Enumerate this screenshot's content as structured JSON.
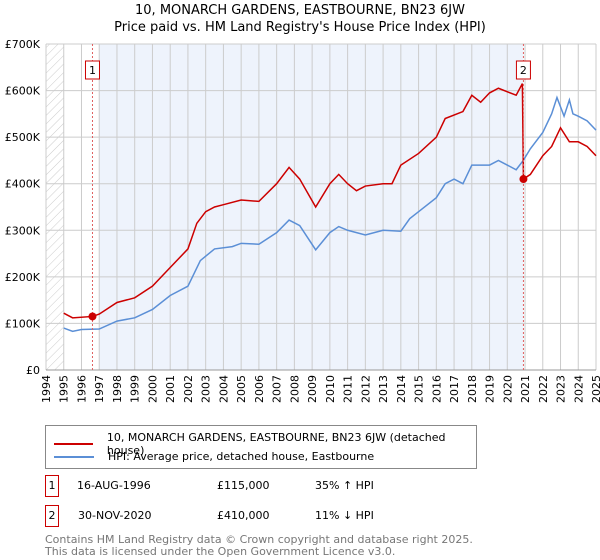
{
  "chart_data": {
    "type": "line",
    "title": "10, MONARCH GARDENS, EASTBOURNE, BN23 6JW",
    "subtitle": "Price paid vs. HM Land Registry's House Price Index (HPI)",
    "xlim": [
      1994,
      2025
    ],
    "ylim": [
      0,
      700000
    ],
    "x_ticks": [
      "1994",
      "1995",
      "1996",
      "1997",
      "1998",
      "1999",
      "2000",
      "2001",
      "2002",
      "2003",
      "2004",
      "2005",
      "2006",
      "2007",
      "2008",
      "2009",
      "2010",
      "2011",
      "2012",
      "2013",
      "2014",
      "2015",
      "2016",
      "2017",
      "2018",
      "2019",
      "2020",
      "2021",
      "2022",
      "2023",
      "2024",
      "2025"
    ],
    "y_ticks": [
      {
        "v": 0,
        "label": "£0"
      },
      {
        "v": 100000,
        "label": "£100K"
      },
      {
        "v": 200000,
        "label": "£200K"
      },
      {
        "v": 300000,
        "label": "£300K"
      },
      {
        "v": 400000,
        "label": "£400K"
      },
      {
        "v": 500000,
        "label": "£500K"
      },
      {
        "v": 600000,
        "label": "£600K"
      },
      {
        "v": 700000,
        "label": "£700K"
      }
    ],
    "grid": true,
    "series": [
      {
        "name": "10, MONARCH GARDENS, EASTBOURNE, BN23 6JW (detached house)",
        "color": "#cc0000",
        "x": [
          1995,
          1995.5,
          1996.62,
          1997,
          1998,
          1999,
          2000,
          2001,
          2002,
          2002.5,
          2003,
          2003.5,
          2004,
          2005,
          2006,
          2007,
          2007.7,
          2008.3,
          2009.2,
          2010,
          2010.5,
          2011,
          2011.5,
          2012,
          2013,
          2013.5,
          2014,
          2015,
          2016,
          2016.5,
          2017.5,
          2018,
          2018.5,
          2019,
          2019.5,
          2020.5,
          2020.85,
          2020.91,
          2021.3,
          2022,
          2022.5,
          2023,
          2023.5,
          2024,
          2024.5,
          2025
        ],
        "y": [
          122000,
          112000,
          115000,
          120000,
          145000,
          155000,
          180000,
          220000,
          260000,
          315000,
          340000,
          350000,
          355000,
          365000,
          362000,
          400000,
          435000,
          410000,
          350000,
          400000,
          420000,
          400000,
          385000,
          395000,
          400000,
          400000,
          440000,
          465000,
          500000,
          540000,
          555000,
          590000,
          575000,
          595000,
          605000,
          590000,
          615000,
          410000,
          420000,
          460000,
          480000,
          520000,
          490000,
          490000,
          480000,
          460000
        ]
      },
      {
        "name": "HPI: Average price, detached house, Eastbourne",
        "color": "#5b8fd6",
        "x": [
          1995,
          1995.5,
          1996,
          1997,
          1998,
          1999,
          2000,
          2001,
          2002,
          2002.7,
          2003.5,
          2004.5,
          2005,
          2006,
          2007,
          2007.7,
          2008.3,
          2009.2,
          2010,
          2010.5,
          2011,
          2012,
          2013,
          2014,
          2014.5,
          2015,
          2016,
          2016.5,
          2017,
          2017.5,
          2018,
          2019,
          2019.5,
          2020.5,
          2020.9,
          2021.3,
          2022,
          2022.5,
          2022.8,
          2023.2,
          2023.5,
          2023.7,
          2024,
          2024.5,
          2025
        ],
        "y": [
          90000,
          83000,
          87000,
          88000,
          105000,
          112000,
          130000,
          160000,
          180000,
          235000,
          260000,
          265000,
          272000,
          270000,
          295000,
          322000,
          310000,
          258000,
          295000,
          308000,
          300000,
          290000,
          300000,
          298000,
          325000,
          340000,
          370000,
          400000,
          410000,
          400000,
          440000,
          440000,
          450000,
          430000,
          450000,
          475000,
          510000,
          550000,
          585000,
          545000,
          580000,
          550000,
          545000,
          535000,
          515000
        ]
      }
    ],
    "sales": [
      {
        "label": "1",
        "x": 1996.62,
        "y": 115000,
        "date": "16-AUG-1996",
        "price": "£115,000",
        "hpi": "35% ↑ HPI"
      },
      {
        "label": "2",
        "x": 2020.91,
        "y": 410000,
        "date": "30-NOV-2020",
        "price": "£410,000",
        "hpi": "11% ↓ HPI"
      }
    ],
    "legend_placement": "below"
  },
  "footer": {
    "line1": "Contains HM Land Registry data © Crown copyright and database right 2025.",
    "line2": "This data is licensed under the Open Government Licence v3.0."
  }
}
